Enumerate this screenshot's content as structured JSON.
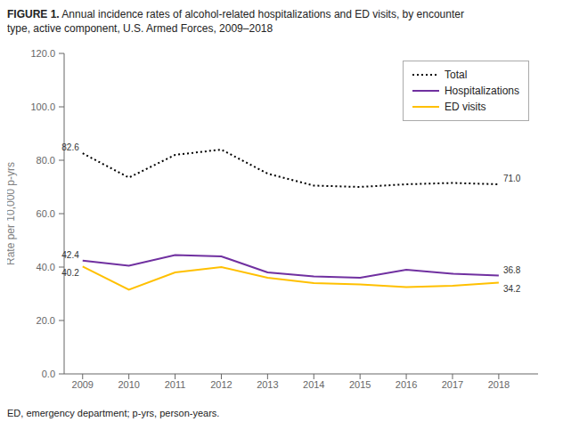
{
  "chart_data": {
    "type": "line",
    "title": "FIGURE 1. Annual incidence rates of alcohol-related hospitalizations and ED visits, by encounter\ntype, active component, U.S. Armed Forces, 2009–2018",
    "footer": "ED, emergency department; p-yrs, person-years.",
    "ylabel": "Rate per 10,000 p-yrs",
    "x": [
      2009,
      2010,
      2011,
      2012,
      2013,
      2014,
      2015,
      2016,
      2017,
      2018
    ],
    "series": [
      {
        "name": "Total",
        "color": "#000000",
        "line_style": "dotted",
        "values": [
          82.6,
          73.5,
          82.0,
          84.0,
          75.0,
          70.5,
          70.0,
          71.0,
          71.5,
          71.0
        ]
      },
      {
        "name": "Hospitalizations",
        "color": "#7030A0",
        "line_style": "solid",
        "values": [
          42.4,
          40.5,
          44.5,
          44.0,
          38.0,
          36.5,
          36.0,
          39.0,
          37.5,
          36.8
        ]
      },
      {
        "name": "ED visits",
        "color": "#FFC000",
        "line_style": "solid",
        "values": [
          40.2,
          31.5,
          38.0,
          40.0,
          36.0,
          34.0,
          33.5,
          32.5,
          33.0,
          34.2
        ]
      }
    ],
    "xlim": [
      2008.6,
      2018.85
    ],
    "xticks": [
      2009,
      2010,
      2011,
      2012,
      2013,
      2014,
      2015,
      2016,
      2017,
      2018
    ],
    "ylim": [
      0,
      120
    ],
    "yticks": [
      {
        "value": 0,
        "label": "0.0"
      },
      {
        "value": 20,
        "label": "20.0"
      },
      {
        "value": 40,
        "label": "40.0"
      },
      {
        "value": 60,
        "label": "60.0"
      },
      {
        "value": 80,
        "label": "80.0"
      },
      {
        "value": 100,
        "label": "100.0"
      },
      {
        "value": 120,
        "label": "120.0"
      }
    ],
    "annotations": [
      {
        "series": "Total",
        "x": 2009,
        "y": 82.6,
        "text": "82.6"
      },
      {
        "series": "Hospitalizations",
        "x": 2009,
        "y": 42.4,
        "text": "42.4"
      },
      {
        "series": "ED visits",
        "x": 2009,
        "y": 40.2,
        "text": "40.2"
      },
      {
        "series": "Total",
        "x": 2018,
        "y": 71.0,
        "text": "71.0"
      },
      {
        "series": "Hospitalizations",
        "x": 2018,
        "y": 36.8,
        "text": "36.8"
      },
      {
        "series": "ED visits",
        "x": 2018,
        "y": 34.2,
        "text": "34.2"
      }
    ],
    "grid": false,
    "legend": "upper right"
  }
}
